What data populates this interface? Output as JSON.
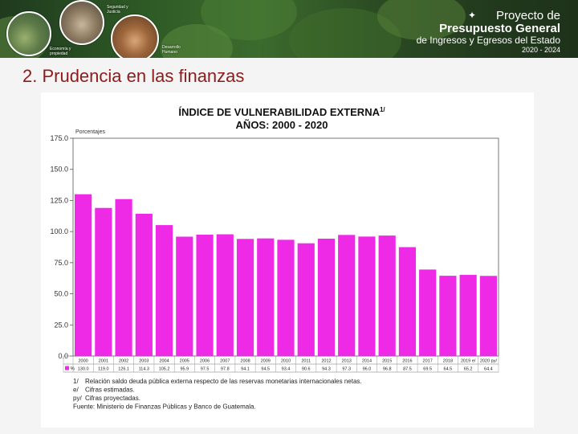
{
  "banner": {
    "title_line1": "Proyecto de",
    "title_line2": "Presupuesto General",
    "title_line3": "de Ingresos y Egresos del Estado",
    "title_line4": "2020 - 2024",
    "circle_captions": [
      "Seguridad y Justicia",
      "Economía y propiedad",
      "Desarrollo Humano"
    ]
  },
  "slide": {
    "heading": "2. Prudencia en las finanzas"
  },
  "chart_data": {
    "type": "bar",
    "title": "ÍNDICE DE VULNERABILIDAD EXTERNA",
    "title_superscript": "1/",
    "subtitle": "AÑOS: 2000 - 2020",
    "ylabel": "Porcentajes",
    "ylim": [
      0,
      175
    ],
    "yticks": [
      "0.0",
      "25.0",
      "50.0",
      "75.0",
      "100.0",
      "125.0",
      "150.0",
      "175.0"
    ],
    "categories": [
      "2000",
      "2001",
      "2002",
      "2003",
      "2004",
      "2005",
      "2006",
      "2007",
      "2008",
      "2009",
      "2010",
      "2011",
      "2012",
      "2013",
      "2014",
      "2015",
      "2016",
      "2017",
      "2018",
      "2019 e/",
      "2020 py/"
    ],
    "series": [
      {
        "name": "%",
        "values": [
          130.0,
          119.0,
          126.1,
          114.3,
          105.2,
          95.9,
          97.5,
          97.8,
          94.1,
          94.5,
          93.4,
          90.6,
          94.3,
          97.3,
          96.0,
          96.8,
          87.5,
          69.5,
          64.5,
          65.2,
          64.4
        ],
        "labels": [
          "130.0",
          "119.0",
          "126.1",
          "114.3",
          "105.2",
          "95.9",
          "97.5",
          "97.8",
          "94.1",
          "94.5",
          "93.4",
          "90.6",
          "94.3",
          "97.3",
          "96.0",
          "96.8",
          "87.5",
          "69.5",
          "64.5",
          "65.2",
          "64.4"
        ],
        "color": "#ee2ae6"
      }
    ],
    "grid": false,
    "notes": [
      {
        "mark": "1/",
        "text": "Relación saldo deuda pública externa respecto de las reservas monetarias internacionales netas."
      },
      {
        "mark": "e/",
        "text": "Cifras estimadas."
      },
      {
        "mark": "py/",
        "text": "Cifras proyectadas."
      },
      {
        "mark": "",
        "text": "Fuente: Ministerio de Finanzas Públicas y Banco de Guatemala."
      }
    ]
  }
}
